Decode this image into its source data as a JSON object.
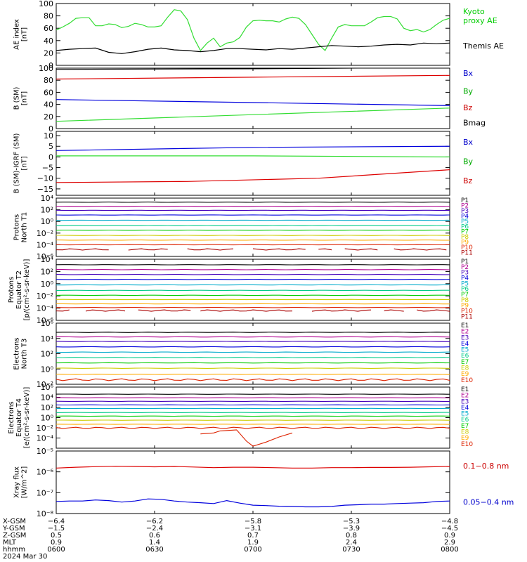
{
  "chart_data": [
    {
      "type": "line",
      "id": "ae",
      "ylabel": [
        "AE index",
        "[nT]"
      ],
      "ylim": [
        0,
        100
      ],
      "yticks": [
        0,
        20,
        40,
        60,
        80,
        100
      ],
      "ytick_labels": [
        "0",
        "20",
        "40",
        "60",
        "80",
        "100"
      ],
      "legend": [
        {
          "name": "Kyoto proxy AE",
          "lines": [
            "Kyoto",
            "proxy AE"
          ],
          "color": "#00cc00",
          "anchor": 80
        },
        {
          "name": "Themis AE",
          "lines": [
            "Themis AE"
          ],
          "color": "#000000",
          "anchor": 32
        }
      ],
      "series": [
        {
          "name": "Kyoto proxy AE",
          "color": "#33dd33",
          "x": [
            0,
            2,
            4,
            6,
            8,
            10,
            12,
            14,
            16,
            18,
            20,
            22,
            24,
            26,
            28,
            30,
            32,
            34,
            36,
            38,
            40,
            42,
            44,
            46,
            48,
            50,
            52,
            54,
            56,
            58,
            60,
            62,
            64,
            66,
            68,
            70,
            72,
            74,
            76,
            78,
            80,
            82,
            84,
            86,
            88,
            90,
            92,
            94,
            96,
            98,
            100,
            102,
            104,
            106,
            108,
            110,
            112,
            114,
            116,
            118,
            120
          ],
          "values": [
            57,
            62,
            68,
            76,
            77,
            77,
            64,
            64,
            67,
            66,
            61,
            63,
            68,
            66,
            62,
            62,
            64,
            78,
            90,
            88,
            74,
            44,
            24,
            36,
            44,
            30,
            36,
            38,
            45,
            62,
            72,
            73,
            72,
            72,
            70,
            75,
            78,
            76,
            66,
            50,
            34,
            24,
            44,
            62,
            66,
            64,
            64,
            64,
            70,
            77,
            79,
            79,
            75,
            60,
            56,
            58,
            54,
            58,
            66,
            73,
            76
          ]
        },
        {
          "name": "Themis AE",
          "color": "#000000",
          "x": [
            0,
            4,
            8,
            12,
            16,
            20,
            24,
            28,
            32,
            36,
            40,
            44,
            48,
            52,
            56,
            60,
            64,
            68,
            72,
            76,
            80,
            84,
            88,
            92,
            96,
            100,
            104,
            108,
            112,
            116,
            120
          ],
          "values": [
            24,
            26,
            27,
            28,
            21,
            19,
            22,
            26,
            28,
            25,
            24,
            22,
            24,
            27,
            27,
            26,
            25,
            27,
            26,
            28,
            30,
            32,
            31,
            30,
            31,
            33,
            34,
            33,
            36,
            35,
            36
          ]
        }
      ]
    },
    {
      "type": "line",
      "id": "b",
      "ylabel": [
        "B (SM)",
        "[nT]"
      ],
      "ylim": [
        0,
        100
      ],
      "yticks": [
        0,
        20,
        40,
        60,
        80,
        100
      ],
      "ytick_labels": [
        "0",
        "20",
        "40",
        "60",
        "80",
        "100"
      ],
      "legend": [
        {
          "name": "Bx",
          "lines": [
            "Bx"
          ],
          "color": "#0000cc",
          "anchor": 92
        },
        {
          "name": "By",
          "lines": [
            "By"
          ],
          "color": "#00aa00",
          "anchor": 62
        },
        {
          "name": "Bz",
          "lines": [
            "Bz"
          ],
          "color": "#cc0000",
          "anchor": 35
        },
        {
          "name": "Bmag",
          "lines": [
            "Bmag"
          ],
          "color": "#000000",
          "anchor": 10
        }
      ],
      "series": [
        {
          "name": "Bmag",
          "color": "#000000",
          "x": [
            0,
            60,
            120
          ],
          "values": [
            98,
            99,
            101
          ]
        },
        {
          "name": "Bz",
          "color": "#dd0000",
          "x": [
            0,
            60,
            120
          ],
          "values": [
            82,
            85,
            88
          ]
        },
        {
          "name": "Bx",
          "color": "#0000dd",
          "x": [
            0,
            60,
            120
          ],
          "values": [
            48,
            43,
            38
          ]
        },
        {
          "name": "By",
          "color": "#33dd33",
          "x": [
            0,
            60,
            120
          ],
          "values": [
            12,
            23,
            34
          ]
        }
      ]
    },
    {
      "type": "line",
      "id": "bdiff",
      "ylabel": [
        "B (SM)-IGRF (SM)",
        "[nT]"
      ],
      "ylim": [
        -18,
        12
      ],
      "yticks": [
        -15,
        -10,
        -5,
        0,
        5,
        10
      ],
      "ytick_labels": [
        "−15",
        "−10",
        "−5",
        "0",
        "5",
        "10"
      ],
      "legend": [
        {
          "name": "Bx",
          "lines": [
            "Bx"
          ],
          "color": "#0000cc",
          "anchor": 7
        },
        {
          "name": "By",
          "lines": [
            "By"
          ],
          "color": "#00aa00",
          "anchor": -2
        },
        {
          "name": "Bz",
          "lines": [
            "Bz"
          ],
          "color": "#cc0000",
          "anchor": -11
        }
      ],
      "series": [
        {
          "name": "Bx",
          "color": "#0000dd",
          "x": [
            0,
            60,
            120
          ],
          "values": [
            3,
            4.5,
            5
          ]
        },
        {
          "name": "By",
          "color": "#33dd33",
          "x": [
            0,
            60,
            120
          ],
          "values": [
            0.5,
            0.5,
            0
          ]
        },
        {
          "name": "Bz",
          "color": "#dd0000",
          "x": [
            0,
            40,
            80,
            120
          ],
          "values": [
            -12,
            -11.5,
            -10,
            -6
          ]
        }
      ]
    },
    {
      "type": "line",
      "id": "p1",
      "log": true,
      "ylabel": [
        "Protons",
        "North T1"
      ],
      "ylim": [
        -6,
        4
      ],
      "yticks": [
        -6,
        -4,
        -2,
        0,
        2,
        4
      ],
      "ytick_labels": [
        "10⁻⁶",
        "10⁻⁴",
        "10⁻²",
        "10⁰",
        "10²",
        "10⁴"
      ],
      "legend_labels": [
        "P1",
        "P2",
        "P3",
        "P4",
        "P5",
        "P6",
        "P7",
        "P8",
        "P9",
        "P10",
        "P11"
      ],
      "legend_colors": [
        "#000000",
        "#b00090",
        "#4400bb",
        "#0000dd",
        "#00aacc",
        "#00cc88",
        "#00cc00",
        "#cccc00",
        "#ffaa00",
        "#dd2200",
        "#aa0000"
      ],
      "levels": [
        3.3,
        2.6,
        1.9,
        1.1,
        0.2,
        -0.7,
        -1.5,
        -2.4,
        -3.2,
        -4.0,
        -4.8
      ],
      "red_dropouts": [
        [
          17,
          22
        ],
        [
          35,
          40
        ],
        [
          55,
          60
        ],
        [
          76,
          80
        ],
        [
          84,
          88
        ],
        [
          98,
          103
        ]
      ]
    },
    {
      "type": "line",
      "id": "p2",
      "log": true,
      "ylabel": [
        "Protons",
        "Equator T2",
        "[p/(cm²-s-sr-keV)]"
      ],
      "ylim": [
        -6,
        4
      ],
      "yticks": [
        -6,
        -4,
        -2,
        0,
        2,
        4
      ],
      "ytick_labels": [
        "10⁻⁶",
        "10⁻⁴",
        "10⁻²",
        "10⁰",
        "10²",
        "10⁴"
      ],
      "legend_labels": [
        "P1",
        "P2",
        "P3",
        "P4",
        "P5",
        "P6",
        "P7",
        "P8",
        "P9",
        "P10",
        "P11"
      ],
      "legend_colors": [
        "#000000",
        "#b00090",
        "#4400bb",
        "#0000dd",
        "#00aacc",
        "#00cc88",
        "#00cc00",
        "#cccc00",
        "#ffaa00",
        "#dd2200",
        "#aa0000"
      ],
      "levels": [
        3.1,
        2.3,
        1.5,
        0.7,
        -0.2,
        -1.1,
        -1.9,
        -2.6,
        -3.3,
        -3.9,
        -4.4
      ],
      "red_dropouts": [
        [
          5,
          9
        ],
        [
          21,
          25
        ],
        [
          41,
          44
        ],
        [
          72,
          78
        ],
        [
          96,
          100
        ],
        [
          107,
          110
        ]
      ]
    },
    {
      "type": "line",
      "id": "e1",
      "log": true,
      "ylabel": [
        "Electrons",
        "North T3"
      ],
      "ylim": [
        -2,
        6
      ],
      "yticks": [
        -2,
        0,
        2,
        4,
        6
      ],
      "ytick_labels": [
        "10⁻²",
        "10⁰",
        "10²",
        "10⁴",
        "10⁶"
      ],
      "legend_labels": [
        "E1",
        "E2",
        "E3",
        "E4",
        "E5",
        "E6",
        "E7",
        "E8",
        "E9",
        "E10"
      ],
      "legend_colors": [
        "#000000",
        "#b00090",
        "#4400bb",
        "#0000dd",
        "#00aacc",
        "#00cc88",
        "#00cc00",
        "#cccc00",
        "#ffaa00",
        "#dd2200"
      ],
      "levels": [
        4.8,
        4.2,
        3.6,
        2.9,
        2.2,
        1.5,
        0.8,
        0.1,
        -0.7,
        -1.4
      ],
      "red_dropouts": []
    },
    {
      "type": "line",
      "id": "e2",
      "log": true,
      "ylabel": [
        "Electrons",
        "Equator T4",
        "[e/(cm²-s-sr-keV)]"
      ],
      "ylim": [
        -6,
        6
      ],
      "yticks": [
        -4,
        -2,
        0,
        2,
        4,
        6
      ],
      "ytick_labels": [
        "10⁻⁴",
        "10⁻²",
        "10⁰",
        "10²",
        "10⁴",
        "10⁶"
      ],
      "legend_labels": [
        "E1",
        "E2",
        "E3",
        "E4",
        "E5",
        "E6",
        "E7",
        "E8",
        "E9",
        "E10"
      ],
      "legend_colors": [
        "#000000",
        "#b00090",
        "#4400bb",
        "#0000dd",
        "#00aacc",
        "#00cc88",
        "#00cc00",
        "#cccc00",
        "#ffaa00",
        "#dd2200"
      ],
      "levels": [
        4.6,
        3.9,
        3.2,
        2.5,
        1.8,
        1.0,
        0.3,
        -0.5,
        -1.3,
        -2.0
      ],
      "red_dropouts": [],
      "red_low": {
        "x": [
          44,
          48,
          50,
          55,
          58,
          60,
          64,
          68,
          72
        ],
        "values": [
          -3.2,
          -3.0,
          -2.6,
          -2.4,
          -4.6,
          -5.6,
          -4.8,
          -3.8,
          -3.0
        ]
      }
    },
    {
      "type": "line",
      "id": "xray",
      "log": true,
      "ylabel": [
        "Xray flux",
        "[W/m^2]"
      ],
      "ylim": [
        -8,
        -5
      ],
      "yticks": [
        -8,
        -7,
        -6,
        -5
      ],
      "ytick_labels": [
        "10⁻⁸",
        "10⁻⁷",
        "10⁻⁶",
        "10⁻⁵"
      ],
      "legend": [
        {
          "name": "0.1–0.8 nm",
          "lines": [
            "0.1−0.8 nm"
          ],
          "color": "#cc0000",
          "anchor": -5.7
        },
        {
          "name": "0.05–0.4 nm",
          "lines": [
            "0.05−0.4 nm"
          ],
          "color": "#0000cc",
          "anchor": -7.45
        }
      ],
      "series": [
        {
          "name": "0.1–0.8 nm",
          "color": "#dd0000",
          "x": [
            0,
            6,
            12,
            18,
            24,
            30,
            36,
            42,
            48,
            54,
            60,
            66,
            72,
            78,
            84,
            90,
            96,
            102,
            108,
            114,
            120
          ],
          "values": [
            -5.82,
            -5.78,
            -5.75,
            -5.73,
            -5.74,
            -5.76,
            -5.74,
            -5.77,
            -5.8,
            -5.78,
            -5.78,
            -5.8,
            -5.82,
            -5.82,
            -5.8,
            -5.8,
            -5.79,
            -5.79,
            -5.78,
            -5.76,
            -5.74
          ]
        },
        {
          "name": "0.05–0.4 nm",
          "color": "#0000dd",
          "x": [
            0,
            4,
            8,
            12,
            16,
            20,
            24,
            28,
            32,
            36,
            40,
            44,
            48,
            52,
            56,
            60,
            64,
            68,
            72,
            76,
            80,
            84,
            88,
            92,
            96,
            100,
            104,
            108,
            112,
            116,
            120
          ],
          "values": [
            -7.42,
            -7.4,
            -7.4,
            -7.35,
            -7.38,
            -7.45,
            -7.4,
            -7.3,
            -7.32,
            -7.4,
            -7.45,
            -7.48,
            -7.52,
            -7.38,
            -7.5,
            -7.6,
            -7.62,
            -7.65,
            -7.66,
            -7.68,
            -7.68,
            -7.66,
            -7.6,
            -7.58,
            -7.55,
            -7.55,
            -7.52,
            -7.5,
            -7.48,
            -7.42,
            -7.4
          ]
        }
      ]
    }
  ],
  "x_axis": {
    "ticks": [
      0,
      30,
      60,
      90,
      120
    ],
    "rows": [
      {
        "label": "X-GSM",
        "values": [
          "−6.4",
          "−6.2",
          "−5.8",
          "−5.3",
          "−4.8"
        ]
      },
      {
        "label": "Y-GSM",
        "values": [
          "−1.5",
          "−2.4",
          "−3.1",
          "−3.9",
          "−4.5"
        ]
      },
      {
        "label": "Z-GSM",
        "values": [
          "0.5",
          "0.6",
          "0.7",
          "0.8",
          "0.9"
        ]
      },
      {
        "label": "MLT",
        "values": [
          "0.9",
          "1.4",
          "1.9",
          "2.4",
          "2.9"
        ]
      },
      {
        "label": "hhmm",
        "values": [
          "0600",
          "0630",
          "0700",
          "0730",
          "0800"
        ]
      }
    ],
    "date": "2024 Mar 30"
  },
  "colors": {
    "axis": "#000000",
    "background": "#ffffff"
  }
}
